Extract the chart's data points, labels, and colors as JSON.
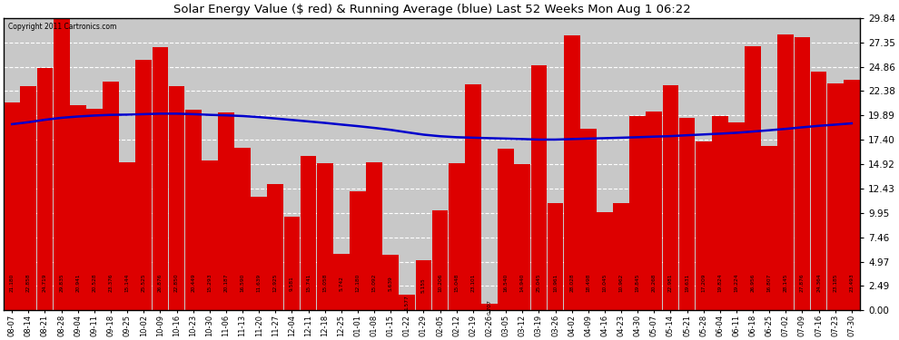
{
  "title": "Solar Energy Value ($ red) & Running Average (blue) Last 52 Weeks Mon Aug 1 06:22",
  "copyright": "Copyright 2011 Cartronics.com",
  "bar_color": "#dd0000",
  "line_color": "#0000cc",
  "bg_color": "#ffffff",
  "plot_bg_color": "#c8c8c8",
  "grid_color": "#ffffff",
  "ylim": [
    0,
    29.84
  ],
  "yticks": [
    0.0,
    2.49,
    4.97,
    7.46,
    9.95,
    12.43,
    14.92,
    17.4,
    19.89,
    22.38,
    24.86,
    27.35,
    29.84
  ],
  "categories": [
    "08-07",
    "08-14",
    "08-21",
    "08-28",
    "09-04",
    "09-11",
    "09-18",
    "09-25",
    "10-02",
    "10-09",
    "10-16",
    "10-23",
    "10-30",
    "11-06",
    "11-13",
    "11-20",
    "11-27",
    "12-04",
    "12-11",
    "12-18",
    "12-25",
    "01-01",
    "01-08",
    "01-15",
    "01-22",
    "01-29",
    "02-05",
    "02-12",
    "02-19",
    "02-26",
    "03-05",
    "03-12",
    "03-19",
    "03-26",
    "04-02",
    "04-09",
    "04-16",
    "04-23",
    "04-30",
    "05-07",
    "05-14",
    "05-21",
    "05-28",
    "06-04",
    "06-11",
    "06-18",
    "06-25",
    "07-02",
    "07-09",
    "07-16",
    "07-23",
    "07-30"
  ],
  "values": [
    21.18,
    22.858,
    24.719,
    29.835,
    20.941,
    20.528,
    23.376,
    15.144,
    25.525,
    26.876,
    22.85,
    20.449,
    15.293,
    20.187,
    16.59,
    11.639,
    12.925,
    9.581,
    15.741,
    15.058,
    5.742,
    12.18,
    15.092,
    5.639,
    1.577,
    5.155,
    10.206,
    15.048,
    23.101,
    0.707,
    16.54,
    14.94,
    25.045,
    10.961,
    28.028,
    18.498,
    10.045,
    10.962,
    19.845,
    20.268,
    22.981,
    19.631,
    17.209,
    19.824,
    19.224,
    26.956,
    16.807,
    28.145,
    27.876,
    24.364,
    23.185,
    23.493
  ],
  "running_avg": [
    19.0,
    19.2,
    19.45,
    19.65,
    19.78,
    19.88,
    19.95,
    19.97,
    20.02,
    20.07,
    20.07,
    20.02,
    19.95,
    19.9,
    19.83,
    19.72,
    19.58,
    19.43,
    19.28,
    19.13,
    18.96,
    18.8,
    18.62,
    18.42,
    18.17,
    17.93,
    17.77,
    17.67,
    17.62,
    17.57,
    17.53,
    17.48,
    17.43,
    17.43,
    17.48,
    17.53,
    17.57,
    17.62,
    17.67,
    17.73,
    17.78,
    17.87,
    17.95,
    18.03,
    18.12,
    18.25,
    18.38,
    18.52,
    18.68,
    18.83,
    18.95,
    19.08
  ]
}
